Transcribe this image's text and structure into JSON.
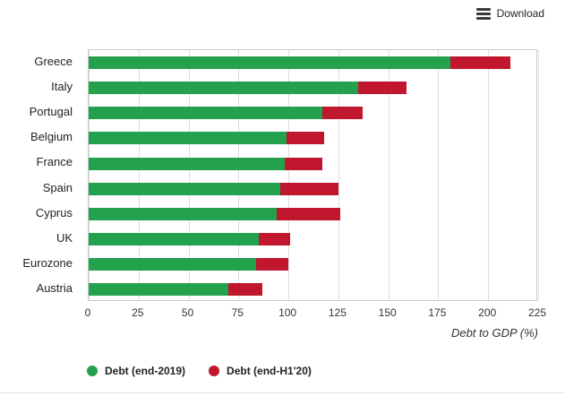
{
  "toolbar": {
    "download_label": "Download"
  },
  "chart_data": {
    "type": "bar",
    "orientation": "horizontal",
    "title": "",
    "xlabel": "Debt to GDP (%)",
    "xlim": [
      0,
      225
    ],
    "xticks": [
      0,
      25,
      50,
      75,
      100,
      125,
      150,
      175,
      200,
      225
    ],
    "grid": true,
    "legend_position": "bottom",
    "categories": [
      "Greece",
      "Italy",
      "Portugal",
      "Belgium",
      "France",
      "Spain",
      "Cyprus",
      "UK",
      "Eurozone",
      "Austria"
    ],
    "series": [
      {
        "name": "Debt (end-2019)",
        "color": "#23a14d",
        "values": [
          181,
          135,
          117,
          99,
          98,
          96,
          94,
          85,
          84,
          70
        ]
      },
      {
        "name": "Debt (end-H1'20)",
        "color": "#c0172f",
        "values": [
          211,
          159,
          137,
          118,
          117,
          125,
          126,
          101,
          100,
          87
        ]
      }
    ],
    "note": "Red segment is drawn from the end-2019 value to the end-H1'20 value; series 2 values are total bar ends."
  }
}
